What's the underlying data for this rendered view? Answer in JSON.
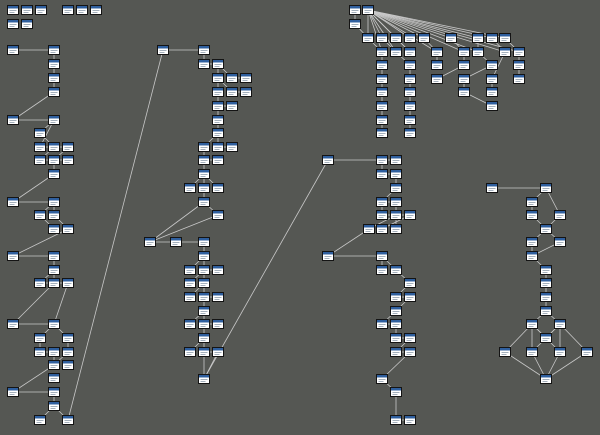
{
  "diagram": {
    "background": "#555753",
    "edge_color": "#c8c8c8",
    "node_icon": "window-icon",
    "node_style": {
      "frame": "#141414",
      "title_bar": "#2f5f9e",
      "body": "#ffffff",
      "lines": "#9aa7b5"
    },
    "nodes": [
      {
        "id": "a1"
      },
      {
        "id": "a2"
      },
      {
        "id": "a3"
      },
      {
        "id": "a4"
      },
      {
        "id": "a5"
      },
      {
        "id": "a6"
      },
      {
        "id": "a7"
      },
      {
        "id": "a8"
      },
      {
        "id": "b0"
      },
      {
        "id": "b1"
      },
      {
        "id": "b2"
      },
      {
        "id": "b3"
      },
      {
        "id": "b4"
      },
      {
        "id": "b5"
      },
      {
        "id": "b6"
      },
      {
        "id": "b7"
      },
      {
        "id": "b8"
      },
      {
        "id": "b9"
      },
      {
        "id": "b10"
      },
      {
        "id": "b11"
      },
      {
        "id": "b12"
      },
      {
        "id": "b13"
      },
      {
        "id": "b14"
      },
      {
        "id": "b15"
      },
      {
        "id": "b16"
      },
      {
        "id": "b17"
      },
      {
        "id": "b18"
      },
      {
        "id": "b19"
      },
      {
        "id": "b20"
      },
      {
        "id": "b21"
      },
      {
        "id": "b22"
      },
      {
        "id": "b23"
      },
      {
        "id": "b24"
      },
      {
        "id": "b25"
      },
      {
        "id": "b26"
      },
      {
        "id": "b27"
      },
      {
        "id": "b28"
      },
      {
        "id": "b29"
      },
      {
        "id": "b30"
      },
      {
        "id": "b31"
      },
      {
        "id": "b32"
      },
      {
        "id": "b33"
      },
      {
        "id": "b34"
      },
      {
        "id": "b35"
      },
      {
        "id": "b36"
      },
      {
        "id": "b37"
      },
      {
        "id": "b38"
      },
      {
        "id": "b39"
      },
      {
        "id": "b40"
      },
      {
        "id": "b41"
      },
      {
        "id": "b42"
      },
      {
        "id": "c0"
      },
      {
        "id": "c1"
      },
      {
        "id": "c2"
      },
      {
        "id": "c3"
      },
      {
        "id": "c4"
      },
      {
        "id": "c5"
      },
      {
        "id": "c6"
      },
      {
        "id": "c7"
      },
      {
        "id": "c8"
      },
      {
        "id": "c9"
      },
      {
        "id": "c10"
      },
      {
        "id": "c11"
      },
      {
        "id": "c12"
      },
      {
        "id": "c13"
      },
      {
        "id": "c14"
      },
      {
        "id": "c15"
      },
      {
        "id": "c16"
      },
      {
        "id": "c17"
      },
      {
        "id": "c18"
      },
      {
        "id": "c19"
      },
      {
        "id": "c20"
      },
      {
        "id": "c21"
      },
      {
        "id": "c22"
      },
      {
        "id": "c23"
      },
      {
        "id": "c24"
      },
      {
        "id": "c25"
      },
      {
        "id": "c26"
      },
      {
        "id": "c27"
      },
      {
        "id": "c28"
      },
      {
        "id": "c29"
      },
      {
        "id": "c30"
      },
      {
        "id": "c31"
      },
      {
        "id": "c32"
      },
      {
        "id": "c33"
      },
      {
        "id": "c34"
      },
      {
        "id": "c35"
      },
      {
        "id": "c36"
      },
      {
        "id": "c37"
      },
      {
        "id": "c38"
      },
      {
        "id": "c39"
      },
      {
        "id": "c40"
      },
      {
        "id": "c41"
      },
      {
        "id": "c42"
      },
      {
        "id": "c43"
      },
      {
        "id": "c44"
      },
      {
        "id": "c45"
      },
      {
        "id": "c46"
      },
      {
        "id": "c47"
      },
      {
        "id": "c48"
      },
      {
        "id": "c49"
      },
      {
        "id": "c50"
      },
      {
        "id": "c51"
      },
      {
        "id": "c52"
      },
      {
        "id": "c53"
      },
      {
        "id": "c54"
      },
      {
        "id": "c55"
      },
      {
        "id": "c56"
      },
      {
        "id": "c57"
      },
      {
        "id": "c58"
      },
      {
        "id": "c59"
      },
      {
        "id": "c60"
      },
      {
        "id": "c61"
      },
      {
        "id": "c62"
      },
      {
        "id": "c63"
      },
      {
        "id": "c64"
      },
      {
        "id": "c65"
      },
      {
        "id": "c66"
      },
      {
        "id": "c67"
      },
      {
        "id": "c68"
      },
      {
        "id": "c69"
      },
      {
        "id": "c70"
      },
      {
        "id": "c71"
      },
      {
        "id": "c72"
      },
      {
        "id": "c73"
      },
      {
        "id": "c74"
      },
      {
        "id": "c75"
      },
      {
        "id": "c76"
      },
      {
        "id": "c77"
      },
      {
        "id": "c78"
      },
      {
        "id": "c79"
      },
      {
        "id": "c80"
      },
      {
        "id": "c81"
      },
      {
        "id": "c82"
      },
      {
        "id": "c83"
      },
      {
        "id": "c84"
      },
      {
        "id": "c85"
      },
      {
        "id": "c86"
      },
      {
        "id": "c87"
      },
      {
        "id": "c88"
      },
      {
        "id": "c89"
      },
      {
        "id": "c90"
      },
      {
        "id": "c91"
      },
      {
        "id": "c92"
      },
      {
        "id": "c93"
      },
      {
        "id": "c94"
      },
      {
        "id": "c95"
      },
      {
        "id": "c96"
      },
      {
        "id": "c97"
      },
      {
        "id": "c98"
      },
      {
        "id": "c99"
      },
      {
        "id": "c100"
      },
      {
        "id": "c101"
      },
      {
        "id": "c102"
      },
      {
        "id": "c103"
      },
      {
        "id": "c104"
      },
      {
        "id": "c105"
      },
      {
        "id": "c106"
      },
      {
        "id": "c107"
      },
      {
        "id": "c108"
      },
      {
        "id": "c109"
      },
      {
        "id": "c110"
      },
      {
        "id": "c111"
      },
      {
        "id": "c112"
      },
      {
        "id": "c113"
      },
      {
        "id": "c114"
      },
      {
        "id": "c115"
      },
      {
        "id": "c116"
      },
      {
        "id": "c117"
      },
      {
        "id": "c118"
      },
      {
        "id": "c119"
      },
      {
        "id": "c120"
      },
      {
        "id": "c121"
      },
      {
        "id": "c122"
      },
      {
        "id": "c123"
      },
      {
        "id": "c124"
      },
      {
        "id": "c125"
      },
      {
        "id": "c126"
      },
      {
        "id": "c127"
      },
      {
        "id": "c128"
      },
      {
        "id": "c129"
      },
      {
        "id": "c130"
      },
      {
        "id": "c131"
      },
      {
        "id": "c132"
      },
      {
        "id": "c133"
      },
      {
        "id": "c134"
      },
      {
        "id": "c135"
      },
      {
        "id": "c136"
      },
      {
        "id": "c137"
      },
      {
        "id": "c138"
      },
      {
        "id": "c139"
      },
      {
        "id": "c140"
      },
      {
        "id": "c141"
      },
      {
        "id": "c142"
      },
      {
        "id": "c143"
      },
      {
        "id": "c144"
      },
      {
        "id": "c145"
      },
      {
        "id": "c146"
      },
      {
        "id": "c147"
      },
      {
        "id": "c148"
      },
      {
        "id": "c149"
      },
      {
        "id": "c150"
      },
      {
        "id": "c151"
      },
      {
        "id": "c152"
      },
      {
        "id": "c153"
      },
      {
        "id": "c154"
      },
      {
        "id": "c155"
      },
      {
        "id": "c156"
      },
      {
        "id": "c157"
      },
      {
        "id": "c158"
      },
      {
        "id": "c159"
      },
      {
        "id": "c160"
      },
      {
        "id": "c161"
      },
      {
        "id": "c162"
      },
      {
        "id": "c163"
      },
      {
        "id": "c164"
      },
      {
        "id": "c165"
      },
      {
        "id": "c166"
      },
      {
        "id": "c167"
      },
      {
        "id": "c168"
      },
      {
        "id": "c169"
      },
      {
        "id": "c170"
      },
      {
        "id": "c171"
      },
      {
        "id": "c172"
      },
      {
        "id": "c173"
      },
      {
        "id": "c174"
      },
      {
        "id": "c175"
      },
      {
        "id": "c176"
      },
      {
        "id": "c177"
      },
      {
        "id": "c178"
      },
      {
        "id": "c179"
      },
      {
        "id": "c180"
      },
      {
        "id": "c181"
      },
      {
        "id": "c182"
      },
      {
        "id": "c183"
      },
      {
        "id": "c184"
      },
      {
        "id": "c185"
      },
      {
        "id": "c186"
      },
      {
        "id": "c187"
      },
      {
        "id": "c188"
      },
      {
        "id": "c189"
      },
      {
        "id": "c190"
      },
      {
        "id": "c191"
      },
      {
        "id": "c192"
      },
      {
        "id": "c193"
      },
      {
        "id": "c194"
      },
      {
        "id": "c195"
      },
      {
        "id": "c196"
      },
      {
        "id": "c197"
      },
      {
        "id": "c198"
      },
      {
        "id": "c199"
      }
    ]
  }
}
